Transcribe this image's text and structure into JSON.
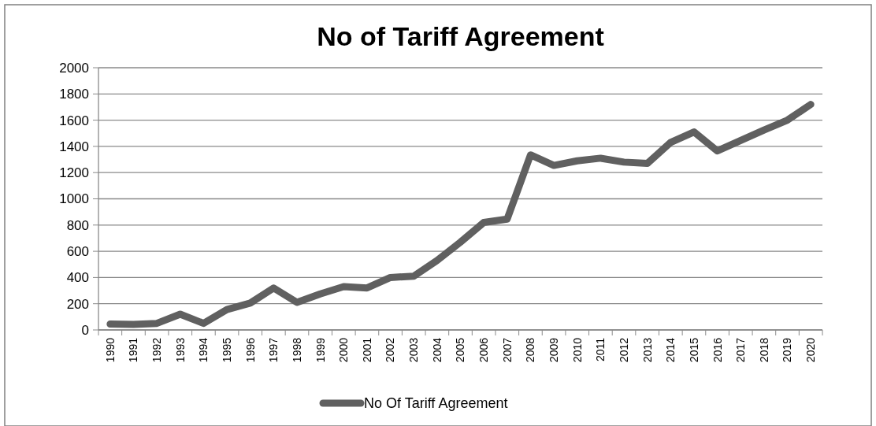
{
  "chart_data": {
    "type": "line",
    "title": "No of Tariff Agreement",
    "categories": [
      "1990",
      "1991",
      "1992",
      "1993",
      "1994",
      "1995",
      "1996",
      "1997",
      "1998",
      "1999",
      "2000",
      "2001",
      "2002",
      "2003",
      "2004",
      "2005",
      "2006",
      "2007",
      "2008",
      "2009",
      "2010",
      "2011",
      "2012",
      "2013",
      "2014",
      "2015",
      "2016",
      "2017",
      "2018",
      "2019",
      "2020"
    ],
    "series": [
      {
        "name": "No Of Tariff Agreement",
        "color": "#606060",
        "values": [
          45,
          42,
          50,
          120,
          50,
          155,
          205,
          320,
          210,
          275,
          330,
          320,
          400,
          410,
          530,
          670,
          820,
          845,
          1335,
          1255,
          1290,
          1310,
          1280,
          1270,
          1430,
          1510,
          1365,
          1445,
          1525,
          1600,
          1720
        ]
      }
    ],
    "ylim": [
      0,
      2000
    ],
    "yticks": [
      0,
      200,
      400,
      600,
      800,
      1000,
      1200,
      1400,
      1600,
      1800,
      2000
    ],
    "grid": "y",
    "legend": "bottom",
    "marker": "none",
    "line_style": "solid"
  }
}
